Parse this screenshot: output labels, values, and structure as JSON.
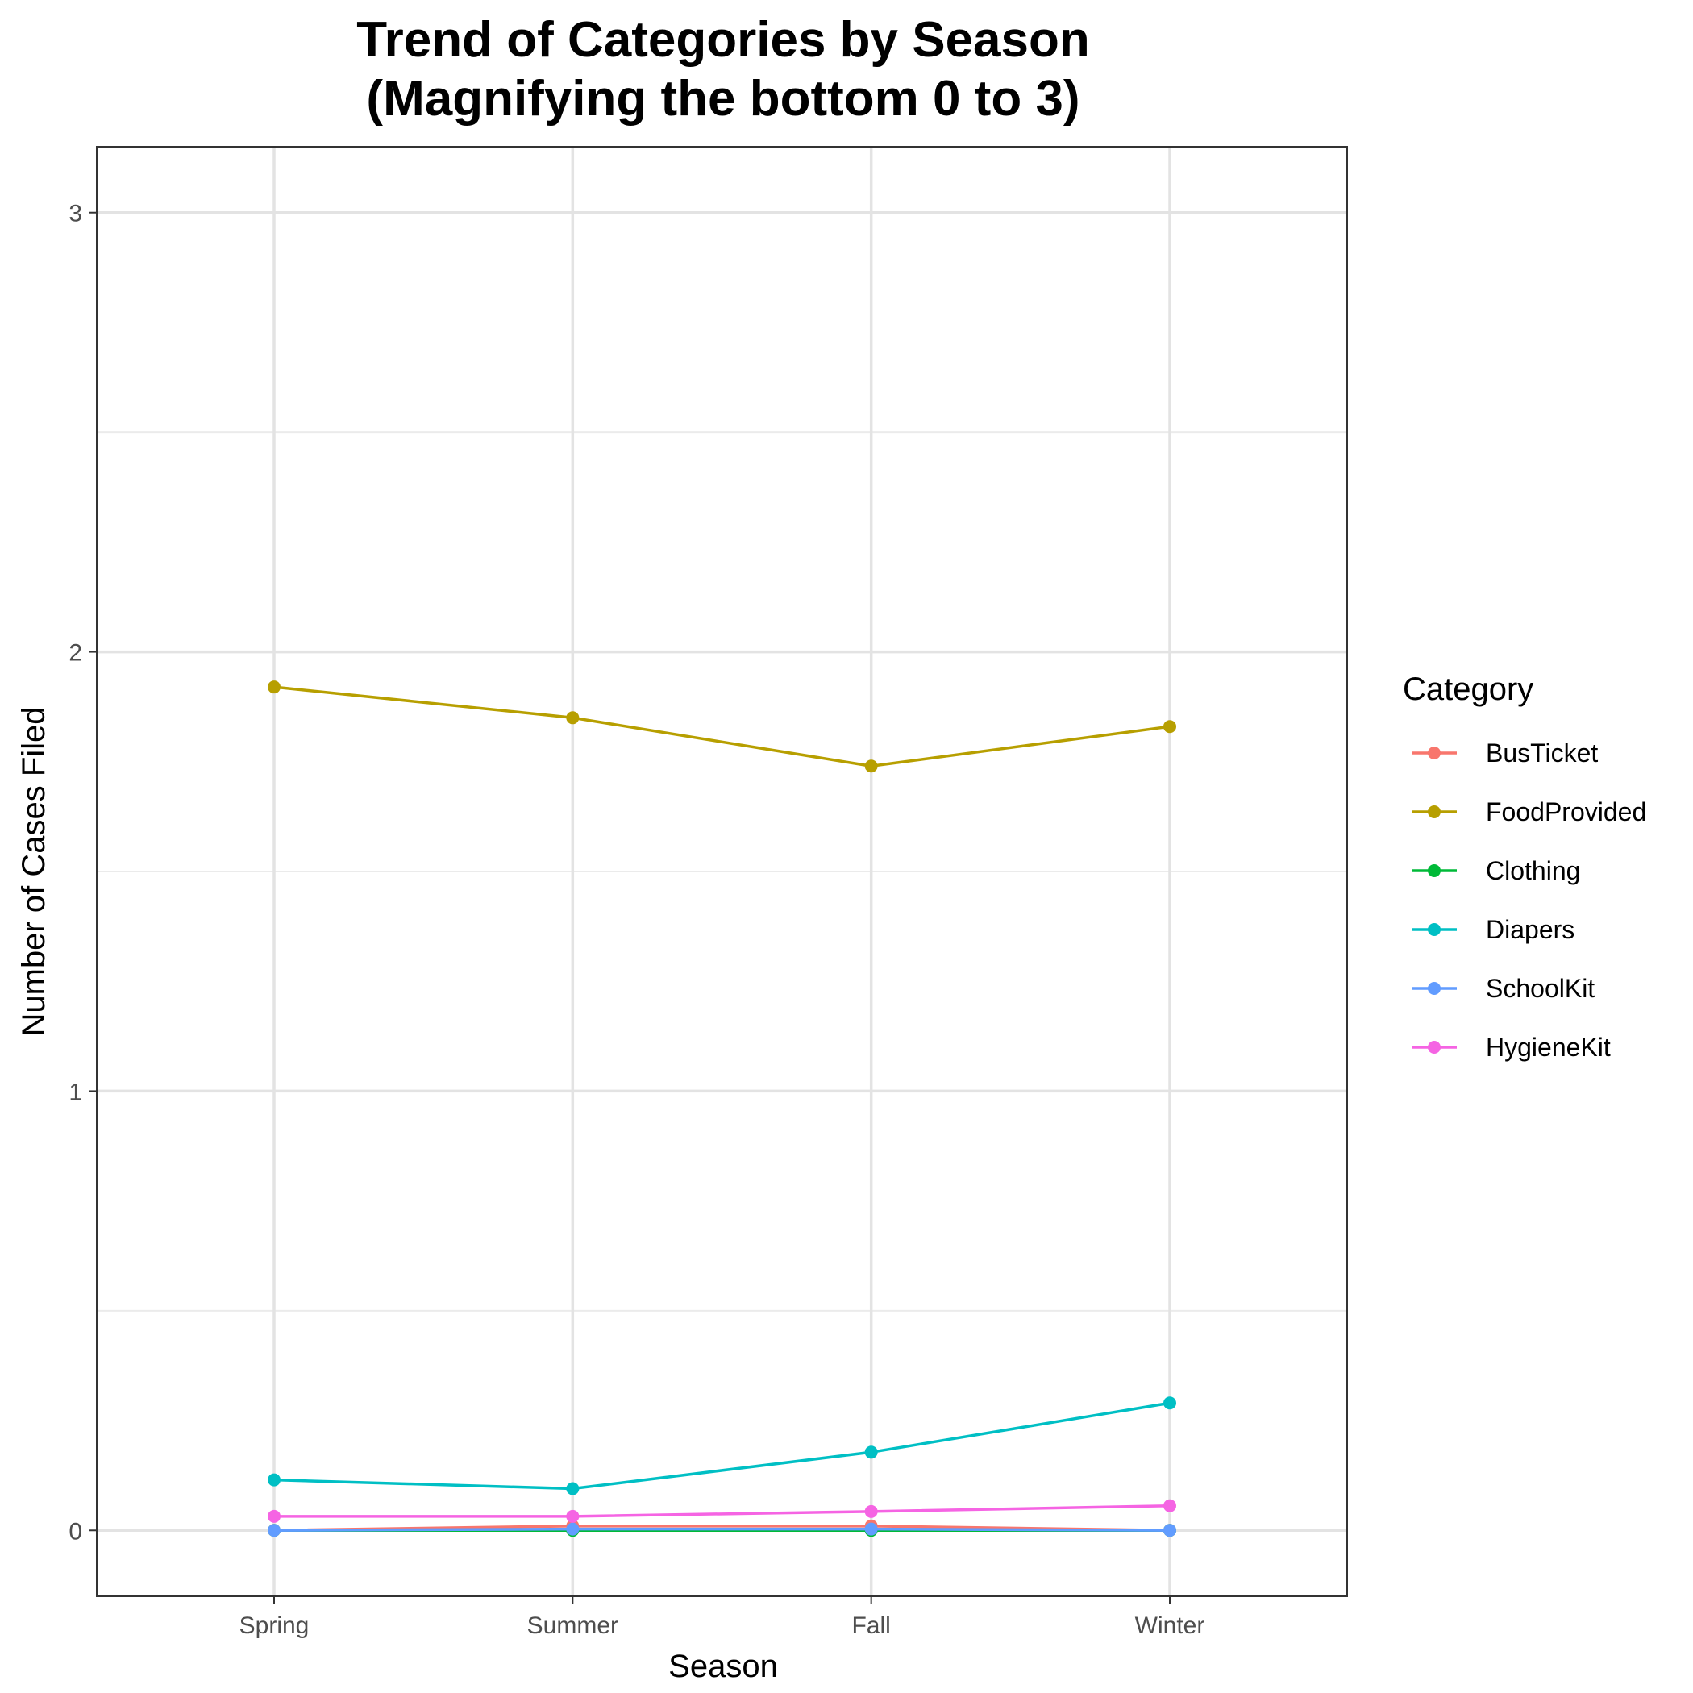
{
  "chart_data": {
    "type": "line",
    "title": "Trend of Categories by Season",
    "subtitle": "(Magnifying the bottom 0 to 3)",
    "xlabel": "Season",
    "ylabel": "Number of Cases Filed",
    "categories": [
      "Spring",
      "Summer",
      "Fall",
      "Winter"
    ],
    "ylim": [
      -0.15,
      3.15
    ],
    "yticks": [
      0,
      1,
      2,
      3
    ],
    "yticks_labels": [
      "0",
      "1",
      "2",
      "3"
    ],
    "grid": true,
    "legend": {
      "title": "Category",
      "position": "right"
    },
    "series": [
      {
        "name": "BusTicket",
        "color": "#F8766D",
        "values": [
          0.0,
          0.01,
          0.01,
          0.0
        ]
      },
      {
        "name": "FoodProvided",
        "color": "#B79F00",
        "values": [
          1.92,
          1.85,
          1.74,
          1.83
        ]
      },
      {
        "name": "Clothing",
        "color": "#00BA38",
        "values": [
          0.0,
          0.0,
          0.0,
          0.0
        ]
      },
      {
        "name": "Diapers",
        "color": "#00BFC4",
        "values": [
          0.115,
          0.095,
          0.178,
          0.29
        ]
      },
      {
        "name": "SchoolKit",
        "color": "#619CFF",
        "values": [
          0.0,
          0.003,
          0.003,
          0.0
        ]
      },
      {
        "name": "HygieneKit",
        "color": "#F564E3",
        "values": [
          0.032,
          0.032,
          0.043,
          0.056
        ]
      }
    ]
  }
}
